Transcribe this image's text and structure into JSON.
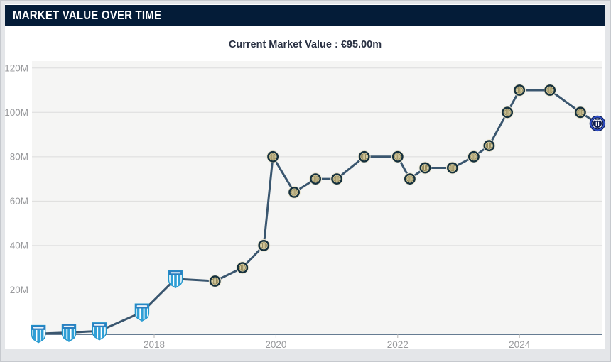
{
  "header": {
    "title": "MARKET VALUE OVER TIME",
    "background": "#041c38",
    "text_color": "#ffffff"
  },
  "chart_header": {
    "current_value_label": "Current Market Value : €95.00m"
  },
  "chart_data": {
    "type": "line",
    "title": "Market value over time",
    "subtitle": "Current Market Value : €95.00m",
    "current_market_value_eur_m": 95.0,
    "unit": "EUR million (M)",
    "grid": true,
    "legend_position": "none",
    "x_axis": {
      "tick_labels": [
        "2018",
        "2020",
        "2022",
        "2024"
      ],
      "tick_values": [
        2018,
        2020,
        2022,
        2024
      ],
      "range": [
        2015.87,
        2025.45
      ]
    },
    "y_axis": {
      "tick_labels": [
        "20M",
        "40M",
        "60M",
        "80M",
        "100M",
        "120M"
      ],
      "tick_values": [
        20,
        40,
        60,
        80,
        100,
        120
      ],
      "range": [
        0,
        123
      ]
    },
    "colors": {
      "line": "#3a566f",
      "plot_background": "#f5f5f4",
      "gridline": "#dcdcdc",
      "axis_line": "#33506e",
      "tick_label": "#98999c",
      "racing_blue": "#2f9fd6",
      "racing_band": "#2a7fc0",
      "inter_ring": "#15303d",
      "inter_beige": "#dbd2a7",
      "inter_new_navy": "#0c1b4d",
      "inter_new_blue": "#3150c9"
    },
    "series": [
      {
        "name": "Market value",
        "marker_legend": {
          "racing": "Racing Club badge",
          "inter": "Inter Milan badge (classic crest)",
          "inter-new": "Inter Milan badge (current crest, latest value)"
        },
        "points": [
          {
            "x_year": 2016.1,
            "value": 0.3,
            "club": "racing"
          },
          {
            "x_year": 2016.6,
            "value": 0.8,
            "club": "racing"
          },
          {
            "x_year": 2017.1,
            "value": 1.5,
            "club": "racing"
          },
          {
            "x_year": 2017.8,
            "value": 10,
            "club": "racing"
          },
          {
            "x_year": 2018.35,
            "value": 25,
            "club": "racing"
          },
          {
            "x_year": 2019.0,
            "value": 24,
            "club": "inter"
          },
          {
            "x_year": 2019.45,
            "value": 30,
            "club": "inter"
          },
          {
            "x_year": 2019.8,
            "value": 40,
            "club": "inter"
          },
          {
            "x_year": 2019.95,
            "value": 80,
            "club": "inter"
          },
          {
            "x_year": 2020.3,
            "value": 64,
            "club": "inter"
          },
          {
            "x_year": 2020.65,
            "value": 70,
            "club": "inter"
          },
          {
            "x_year": 2021.0,
            "value": 70,
            "club": "inter"
          },
          {
            "x_year": 2021.45,
            "value": 80,
            "club": "inter"
          },
          {
            "x_year": 2022.0,
            "value": 80,
            "club": "inter"
          },
          {
            "x_year": 2022.2,
            "value": 70,
            "club": "inter"
          },
          {
            "x_year": 2022.45,
            "value": 75,
            "club": "inter"
          },
          {
            "x_year": 2022.9,
            "value": 75,
            "club": "inter"
          },
          {
            "x_year": 2023.25,
            "value": 80,
            "club": "inter"
          },
          {
            "x_year": 2023.5,
            "value": 85,
            "club": "inter"
          },
          {
            "x_year": 2023.8,
            "value": 100,
            "club": "inter"
          },
          {
            "x_year": 2024.0,
            "value": 110,
            "club": "inter"
          },
          {
            "x_year": 2024.5,
            "value": 110,
            "club": "inter"
          },
          {
            "x_year": 2025.0,
            "value": 100,
            "club": "inter"
          },
          {
            "x_year": 2025.28,
            "value": 95,
            "club": "inter-new"
          }
        ]
      }
    ]
  }
}
